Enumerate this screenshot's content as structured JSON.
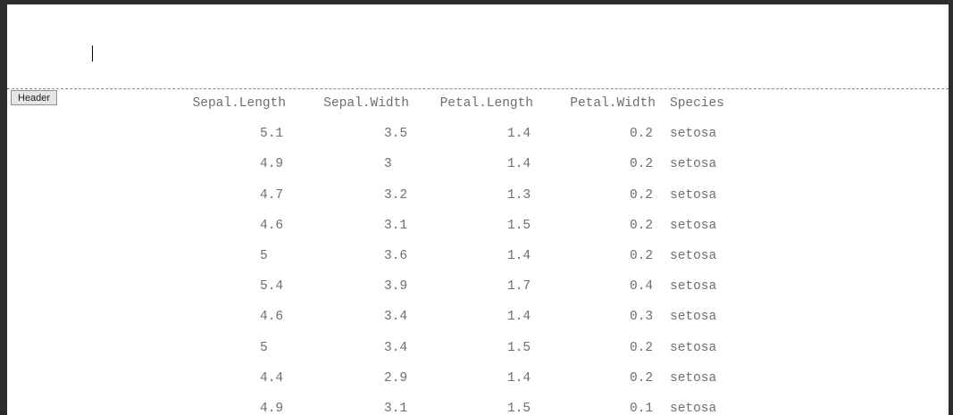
{
  "header": {
    "tag_label": "Header"
  },
  "table": {
    "columns": [
      "Sepal.Length",
      "Sepal.Width",
      "Petal.Length",
      "Petal.Width",
      "Species"
    ],
    "rows": [
      [
        "5.1",
        "3.5",
        "1.4",
        "0.2",
        "setosa"
      ],
      [
        "4.9",
        "3",
        "1.4",
        "0.2",
        "setosa"
      ],
      [
        "4.7",
        "3.2",
        "1.3",
        "0.2",
        "setosa"
      ],
      [
        "4.6",
        "3.1",
        "1.5",
        "0.2",
        "setosa"
      ],
      [
        "5",
        "3.6",
        "1.4",
        "0.2",
        "setosa"
      ],
      [
        "5.4",
        "3.9",
        "1.7",
        "0.4",
        "setosa"
      ],
      [
        "4.6",
        "3.4",
        "1.4",
        "0.3",
        "setosa"
      ],
      [
        "5",
        "3.4",
        "1.5",
        "0.2",
        "setosa"
      ],
      [
        "4.4",
        "2.9",
        "1.4",
        "0.2",
        "setosa"
      ],
      [
        "4.9",
        "3.1",
        "1.5",
        "0.1",
        "setosa"
      ]
    ]
  }
}
